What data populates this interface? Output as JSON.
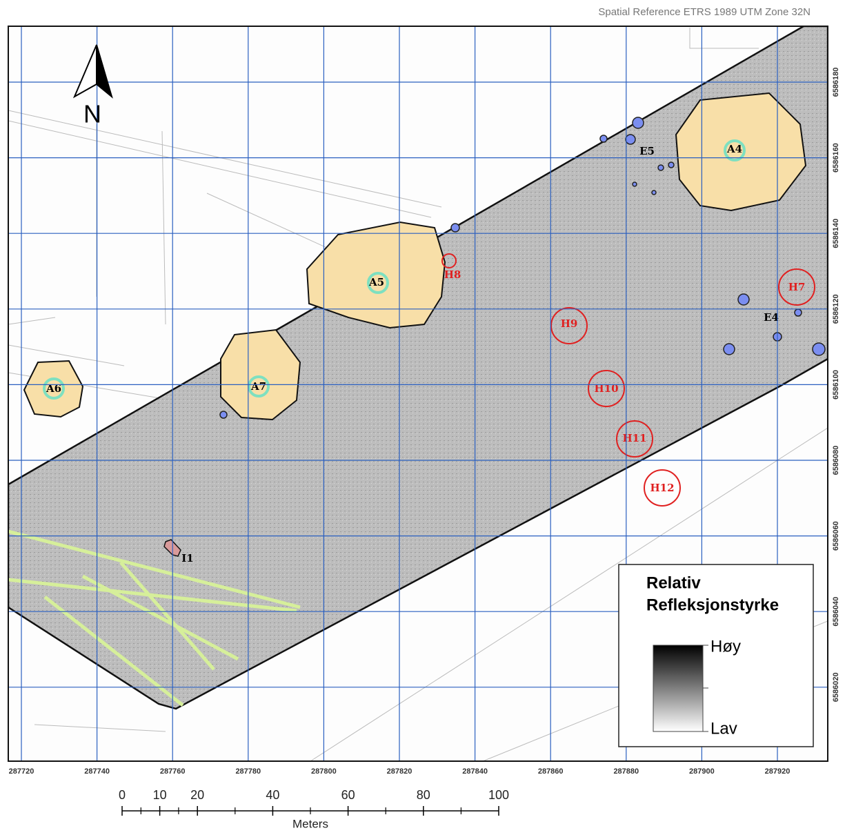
{
  "header": {
    "spatial_reference": "Spatial Reference ETRS 1989 UTM Zone 32N"
  },
  "map": {
    "north_label": "N",
    "x_ticks": [
      287720,
      287740,
      287760,
      287780,
      287800,
      287820,
      287840,
      287860,
      287880,
      287900,
      287920
    ],
    "y_ticks": [
      6586180,
      6586160,
      6586140,
      6586120,
      6586100,
      6586080,
      6586060,
      6586040,
      6586020
    ],
    "areas": [
      "A4",
      "A5",
      "A6",
      "A7"
    ],
    "clusters": [
      "E5",
      "E4"
    ],
    "rings": [
      "H7",
      "H8",
      "H9",
      "H10",
      "H11",
      "H12"
    ],
    "item": "I1"
  },
  "legend": {
    "title": [
      "Relativ",
      "Refleksjonstyrke"
    ],
    "high": "Høy",
    "low": "Lav"
  },
  "scale_bar": {
    "ticks": [
      0,
      10,
      20,
      40,
      60,
      80,
      100
    ],
    "unit": "Meters"
  }
}
